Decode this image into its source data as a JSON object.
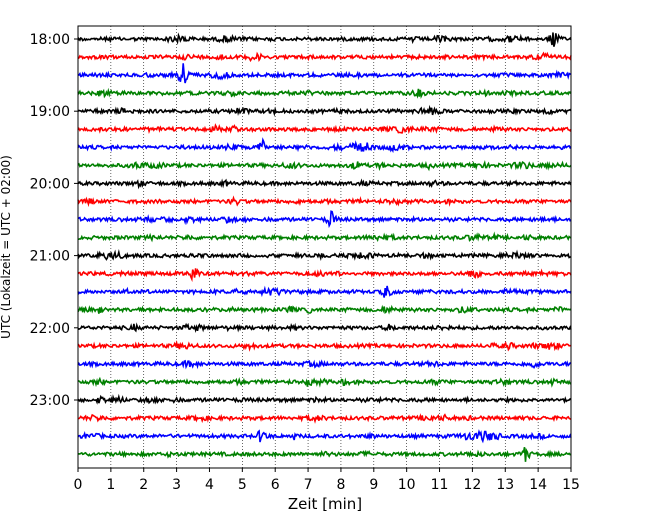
{
  "chart_data": {
    "type": "line",
    "chart_kind": "helicorder seismogram",
    "xlabel": "Zeit  [min]",
    "ylabel": "UTC (Lokalzeit = UTC + 02:00)",
    "xlim": [
      0,
      15
    ],
    "x_ticks": [
      "0",
      "1",
      "2",
      "3",
      "4",
      "5",
      "6",
      "7",
      "8",
      "9",
      "10",
      "11",
      "12",
      "13",
      "14",
      "15"
    ],
    "y_tick_labels": [
      "18:00",
      "19:00",
      "20:00",
      "21:00",
      "22:00",
      "23:00"
    ],
    "y_tick_rows": [
      0,
      4,
      8,
      12,
      16,
      20
    ],
    "trace_count": 24,
    "trace_minutes": 15,
    "trace_colors": [
      "#000000",
      "#ff0000",
      "#0000ff",
      "#008000"
    ],
    "grid": "vertical dotted lines at each minute",
    "events": [
      {
        "row": 0,
        "minute": 14.5,
        "amplitude": 1.0
      },
      {
        "row": 1,
        "minute": 5.4,
        "amplitude": 0.9
      },
      {
        "row": 2,
        "minute": 3.2,
        "amplitude": 1.5
      },
      {
        "row": 6,
        "minute": 5.6,
        "amplitude": 0.8
      },
      {
        "row": 10,
        "minute": 7.7,
        "amplitude": 0.9
      },
      {
        "row": 13,
        "minute": 3.5,
        "amplitude": 0.8
      },
      {
        "row": 14,
        "minute": 9.4,
        "amplitude": 0.8
      },
      {
        "row": 22,
        "minute": 5.6,
        "amplitude": 0.8
      },
      {
        "row": 23,
        "minute": 13.6,
        "amplitude": 0.8
      }
    ]
  }
}
